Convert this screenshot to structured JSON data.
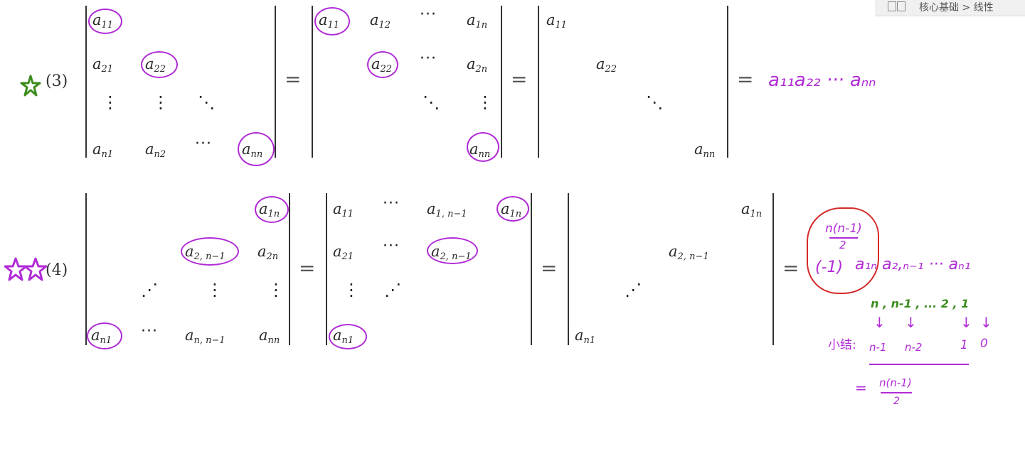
{
  "topbar": {
    "breadcrumb": "核心基础 > 线性"
  },
  "labels": {
    "item3": "(3)",
    "item4": "(4)"
  },
  "symbols": {
    "equals": "=",
    "hdots": "···",
    "vdots": "⋮",
    "ddots": "⋱",
    "adots": "⋰"
  },
  "formula3": {
    "a11": "a",
    "s11": "11",
    "a12": "a",
    "s12": "12",
    "a1n": "a",
    "s1n": "1n",
    "a21": "a",
    "s21": "21",
    "a22": "a",
    "s22": "22",
    "a2n": "a",
    "s2n": "2n",
    "an1": "a",
    "sn1": "n1",
    "an2": "a",
    "sn2": "n2",
    "ann": "a",
    "snn": "nn",
    "result": "a₁₁a₂₂ ··· aₙₙ"
  },
  "formula4": {
    "a1n": "a",
    "s1n": "1n",
    "a2n1": "a",
    "s2n1": "2, n−1",
    "a2n": "a",
    "s2n": "2n",
    "an1": "a",
    "sn1": "n1",
    "ann1": "a",
    "snn1": "n, n−1",
    "ann": "a",
    "snn": "nn",
    "a11": "a",
    "s11": "11",
    "a1n1": "a",
    "s1n1": "1, n−1",
    "a21": "a",
    "s21": "21"
  },
  "notes": {
    "exp_num": "n(n-1)",
    "exp_den": "2",
    "sign": "(-1)",
    "product": "a₁ₙ a₂,ₙ₋₁ ··· aₙ₁",
    "seq": "n , n-1 , ... 2 , 1",
    "arrows": "↓",
    "label": "小结:",
    "seq2a": "n-1",
    "seq2b": "n-2",
    "seq2c": "1",
    "seq2d": "0",
    "sum_eq": "=",
    "sum_num": "n(n-1)",
    "sum_den": "2"
  },
  "colors": {
    "purple": "#b12bd6",
    "green": "#3c8c1e",
    "red": "#d42a2a"
  }
}
